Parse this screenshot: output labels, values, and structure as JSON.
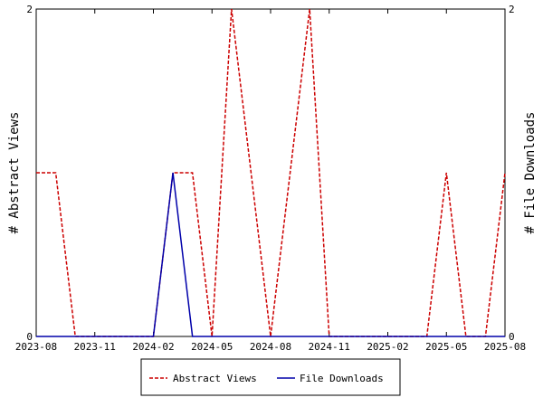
{
  "chart_data": {
    "type": "line",
    "x_tick_labels": [
      "2023-08",
      "2023-11",
      "2024-02",
      "2024-05",
      "2024-08",
      "2024-11",
      "2025-02",
      "2025-05",
      "2025-08"
    ],
    "x": [
      "2023-08",
      "2023-09",
      "2023-10",
      "2023-11",
      "2023-12",
      "2024-01",
      "2024-02",
      "2024-03",
      "2024-04",
      "2024-05",
      "2024-06",
      "2024-07",
      "2024-08",
      "2024-09",
      "2024-10",
      "2024-11",
      "2024-12",
      "2025-01",
      "2025-02",
      "2025-03",
      "2025-04",
      "2025-05",
      "2025-06",
      "2025-07",
      "2025-08"
    ],
    "series": [
      {
        "name": "Abstract Views",
        "color": "#cc0000",
        "dash": "dashed",
        "axis": "left",
        "values": [
          1,
          1,
          0,
          0,
          0,
          0,
          0,
          1,
          1,
          0,
          2,
          1,
          0,
          1,
          2,
          0,
          0,
          0,
          0,
          0,
          0,
          1,
          0,
          0,
          1
        ]
      },
      {
        "name": "File Downloads",
        "color": "#0000aa",
        "dash": "solid",
        "axis": "right",
        "values": [
          0,
          0,
          0,
          0,
          0,
          0,
          0,
          1,
          0,
          0,
          0,
          0,
          0,
          0,
          0,
          0,
          0,
          0,
          0,
          0,
          0,
          0,
          0,
          0,
          0
        ]
      }
    ],
    "ylabel_left": "# Abstract Views",
    "ylabel_right": "# File Downloads",
    "ylim_left": [
      0,
      2
    ],
    "ylim_right": [
      0,
      2
    ],
    "y_ticks_left": [
      "0",
      "2"
    ],
    "y_ticks_right": [
      "0",
      "2"
    ],
    "grid": false,
    "legend_position": "bottom-center"
  }
}
